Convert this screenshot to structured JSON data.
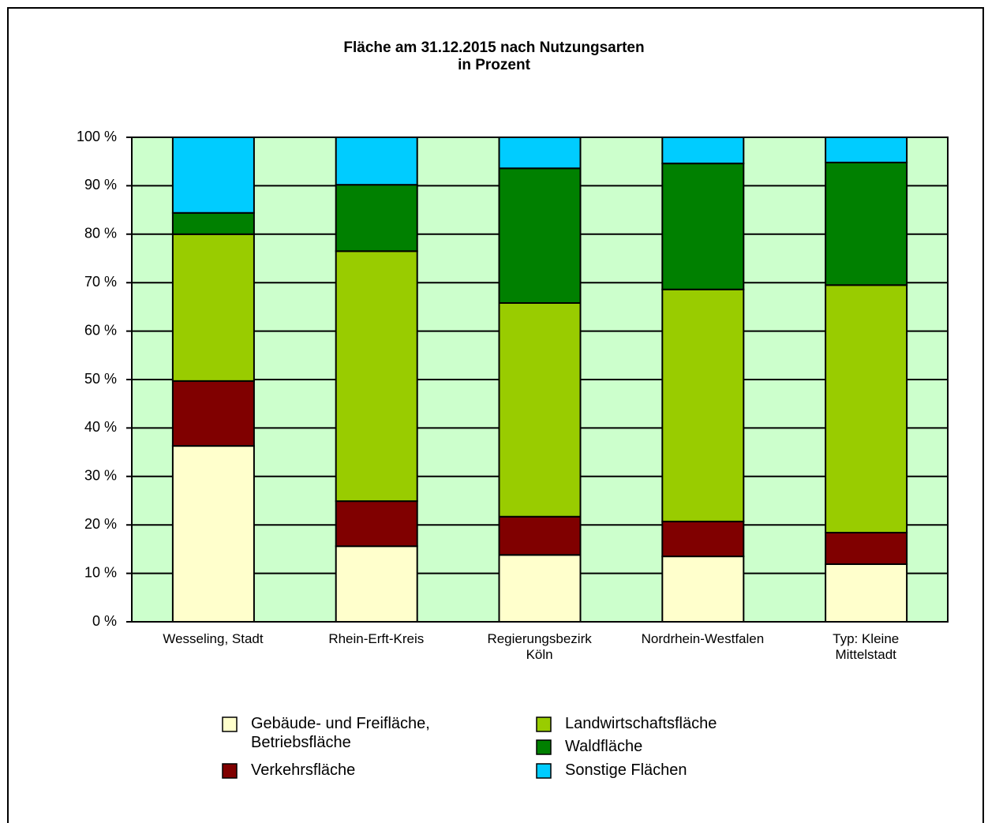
{
  "chart_data": {
    "type": "stacked_bar",
    "title": "Fläche am 31.12.2015 nach Nutzungsarten\nin Prozent",
    "categories": [
      "Wesseling, Stadt",
      "Rhein-Erft-Kreis",
      "Regierungsbezirk\nKöln",
      "Nordrhein-Westfalen",
      "Typ: Kleine\nMittelstadt"
    ],
    "series": [
      {
        "name": "Gebäude- und Freifläche,\nBetriebsfläche",
        "color": "#ffffcc",
        "values": [
          36.3,
          15.6,
          13.8,
          13.5,
          11.9
        ]
      },
      {
        "name": "Verkehrsfläche",
        "color": "#800000",
        "values": [
          13.4,
          9.3,
          7.9,
          7.2,
          6.5
        ]
      },
      {
        "name": "Landwirtschaftsfläche",
        "color": "#99cc00",
        "values": [
          30.3,
          51.6,
          44.1,
          47.9,
          51.1
        ]
      },
      {
        "name": "Waldfläche",
        "color": "#008000",
        "values": [
          4.4,
          13.7,
          27.8,
          26.0,
          25.3
        ]
      },
      {
        "name": "Sonstige Flächen",
        "color": "#00ccff",
        "values": [
          15.6,
          9.8,
          6.4,
          5.4,
          5.2
        ]
      }
    ],
    "ylim": [
      0,
      100
    ],
    "yticks": [
      {
        "value": 0,
        "label": "0 %"
      },
      {
        "value": 10,
        "label": "10 %"
      },
      {
        "value": 20,
        "label": "20 %"
      },
      {
        "value": 30,
        "label": "30 %"
      },
      {
        "value": 40,
        "label": "40 %"
      },
      {
        "value": 50,
        "label": "50 %"
      },
      {
        "value": 60,
        "label": "60 %"
      },
      {
        "value": 70,
        "label": "70 %"
      },
      {
        "value": 80,
        "label": "80 %"
      },
      {
        "value": 90,
        "label": "90 %"
      },
      {
        "value": 100,
        "label": "100 %"
      }
    ],
    "grid": true,
    "plot_background": "#ccffcc"
  }
}
